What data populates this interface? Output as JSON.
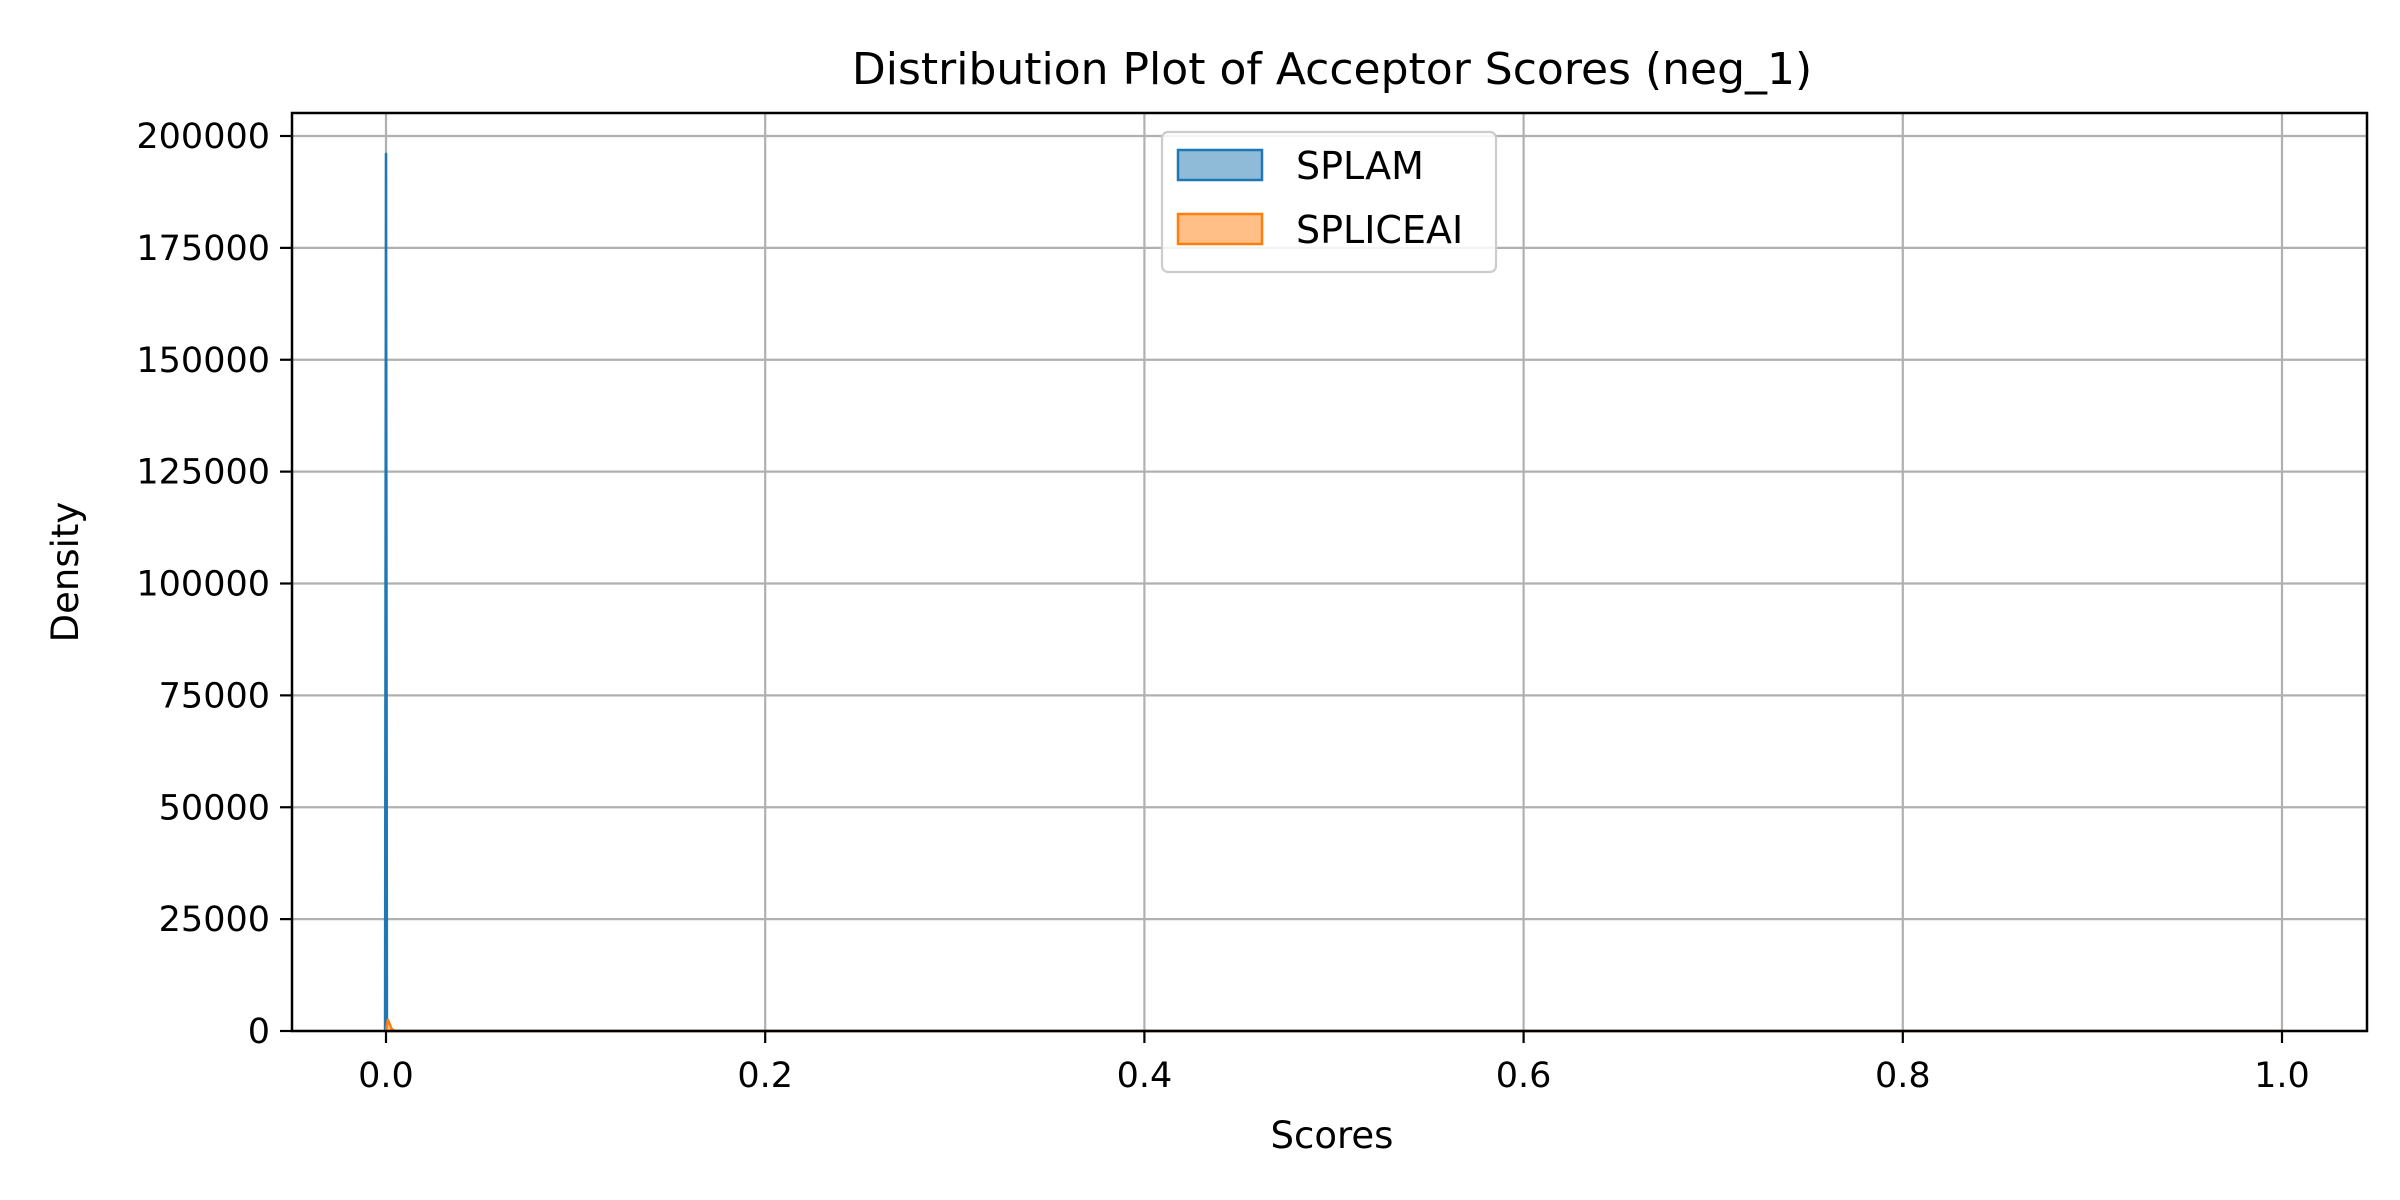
{
  "chart_data": {
    "type": "area",
    "title": "Distribution Plot of Acceptor Scores (neg_1)",
    "xlabel": "Scores",
    "ylabel": "Density",
    "xlim": [
      -0.05,
      1.05
    ],
    "ylim": [
      0,
      205000
    ],
    "x_ticks": [
      0.0,
      0.2,
      0.4,
      0.6,
      0.8,
      1.0
    ],
    "x_tick_labels": [
      "0.0",
      "0.2",
      "0.4",
      "0.6",
      "0.8",
      "1.0"
    ],
    "y_ticks": [
      0,
      25000,
      50000,
      75000,
      100000,
      125000,
      150000,
      175000,
      200000
    ],
    "y_tick_labels": [
      "0",
      "25000",
      "50000",
      "75000",
      "100000",
      "125000",
      "150000",
      "175000",
      "200000"
    ],
    "grid": true,
    "legend_position": "upper center",
    "series": [
      {
        "name": "SPLAM",
        "color": "#1f77b4",
        "fill": "#8fbbd9",
        "x": [
          -0.0005,
          0.0,
          0.0005,
          0.001,
          1.0
        ],
        "y": [
          0,
          196000,
          0,
          0,
          0
        ]
      },
      {
        "name": "SPLICEAI",
        "color": "#ff7f0e",
        "fill": "#ffbf86",
        "x": [
          0.0,
          0.001,
          0.002,
          0.003,
          0.005,
          1.0
        ],
        "y": [
          0,
          2500,
          1500,
          400,
          0,
          0
        ]
      }
    ]
  }
}
